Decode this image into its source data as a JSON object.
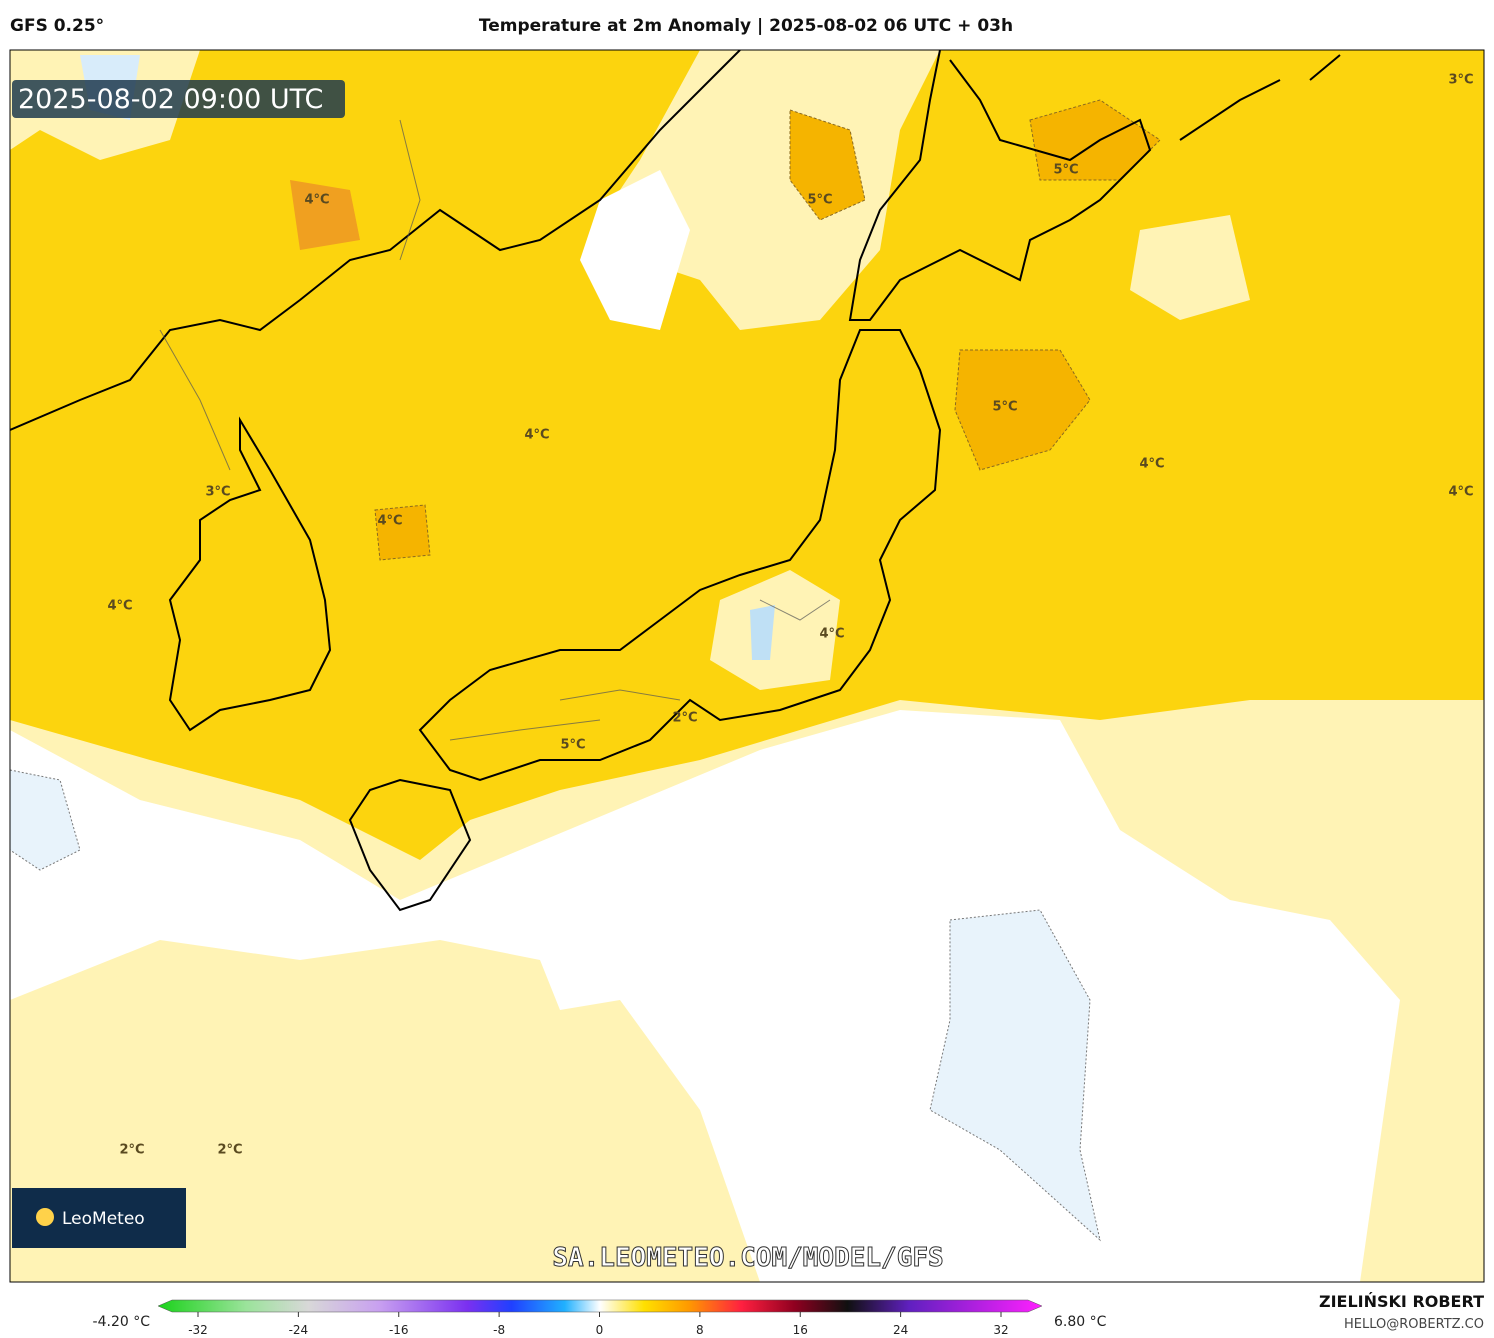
{
  "header": {
    "model": "GFS 0.25°",
    "title": "Temperature at 2m Anomaly | 2025-08-02 06 UTC + 03h"
  },
  "map": {
    "valid_time": "2025-08-02 09:00 UTC",
    "contour_labels": [
      "3°C",
      "4°C",
      "5°C",
      "5°C",
      "4°C",
      "5°C",
      "4°C",
      "4°C",
      "3°C",
      "4°C",
      "4°C",
      "4°C",
      "2°C",
      "5°C",
      "2°C",
      "2°C"
    ],
    "watermark": "SA.LEOMETEO.COM/MODEL/GFS",
    "logo": "LeoMeteo"
  },
  "colorbar": {
    "min_label": "-4.20 °C",
    "max_label": "6.80 °C",
    "ticks": [
      -32,
      -24,
      -16,
      -8,
      0,
      8,
      16,
      24,
      32
    ]
  },
  "footer": {
    "author": "ZIELIŃSKI ROBERT",
    "contact": "HELLO@ROBERTZ.CO"
  }
}
